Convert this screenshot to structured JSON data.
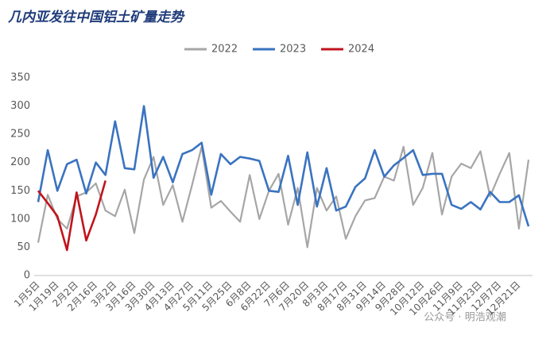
{
  "chart_data": {
    "type": "line",
    "title": "几内亚发往中国铝土矿量走势",
    "categories": [
      "1月5日",
      null,
      "1月19日",
      null,
      "2月2日",
      null,
      "2月16日",
      null,
      "3月2日",
      null,
      "3月16日",
      null,
      "3月30日",
      null,
      "4月13日",
      null,
      "4月27日",
      null,
      "5月11日",
      null,
      "5月25日",
      null,
      "6月8日",
      null,
      "6月22日",
      null,
      "7月6日",
      null,
      "7月20日",
      null,
      "8月3日",
      null,
      "8月17日",
      null,
      "8月31日",
      null,
      "9月14日",
      null,
      "9月28日",
      null,
      "10月12日",
      null,
      "10月26日",
      null,
      "11月9日",
      null,
      "11月23日",
      null,
      "12月7日",
      null,
      "12月21日",
      null
    ],
    "series": [
      {
        "name": "2022",
        "color": "#a6a6a6",
        "values": [
          58,
          143,
          100,
          83,
          140,
          147,
          163,
          115,
          105,
          152,
          75,
          170,
          210,
          125,
          160,
          95,
          160,
          228,
          120,
          132,
          113,
          95,
          178,
          100,
          150,
          180,
          90,
          155,
          50,
          155,
          115,
          140,
          65,
          105,
          133,
          137,
          175,
          168,
          228,
          125,
          155,
          217,
          108,
          175,
          198,
          190,
          220,
          140,
          180,
          217,
          83,
          205
        ]
      },
      {
        "name": "2023",
        "color": "#3a73c0",
        "values": [
          130,
          222,
          150,
          197,
          205,
          145,
          200,
          178,
          273,
          190,
          188,
          300,
          173,
          210,
          165,
          215,
          222,
          235,
          143,
          215,
          197,
          210,
          207,
          203,
          150,
          148,
          212,
          125,
          218,
          122,
          190,
          115,
          122,
          157,
          172,
          222,
          175,
          195,
          208,
          222,
          178,
          180,
          180,
          125,
          118,
          130,
          117,
          148,
          130,
          130,
          142,
          87
        ]
      },
      {
        "name": "2024",
        "color": "#c0141c",
        "values": [
          150,
          128,
          105,
          45,
          147,
          62,
          108,
          168,
          null,
          null,
          null,
          null,
          null,
          null,
          null,
          null,
          null,
          null,
          null,
          null,
          null,
          null,
          null,
          null,
          null,
          null,
          null,
          null,
          null,
          null,
          null,
          null,
          null,
          null,
          null,
          null,
          null,
          null,
          null,
          null,
          null,
          null,
          null,
          null,
          null,
          null,
          null,
          null,
          null,
          null,
          null,
          null
        ]
      }
    ],
    "ylim": [
      0,
      350
    ],
    "yticks": [
      0,
      50,
      100,
      150,
      200,
      250,
      300,
      350
    ],
    "annotation": "公众号 · 明浩观潮"
  }
}
